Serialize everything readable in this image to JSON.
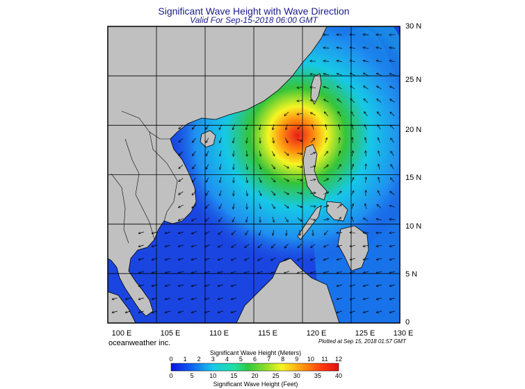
{
  "title": "Significant Wave Height with Wave Direction",
  "subtitle": "Valid For Sep-15-2018 06:00 GMT",
  "brand": "oceanweather inc.",
  "plotted": "Plotted at Sep 15, 2018 01:57 GMT",
  "map": {
    "lon_labels": [
      "100 E",
      "105 E",
      "110 E",
      "115 E",
      "120 E",
      "125 E",
      "130 E"
    ],
    "lat_labels": [
      "0",
      "5 N",
      "10 N",
      "15 N",
      "20 N",
      "25 N",
      "30 N"
    ],
    "storm_center": {
      "lon": 120.0,
      "lat": 19.5,
      "max_wave_height_m": 12
    },
    "land_color": "#c0c0c0",
    "colors": {
      "low": "#1a3fe0",
      "mid": "#17d6e6",
      "green": "#36c43a",
      "yellow": "#f5f523",
      "red": "#e61c1c"
    }
  },
  "colorbar": {
    "meters_title": "Significant Wave Height (Meters)",
    "feet_title": "Significant Wave Height (Feet)",
    "meters_ticks": [
      "0",
      "1",
      "2",
      "3",
      "4",
      "5",
      "6",
      "7",
      "8",
      "9",
      "10",
      "11",
      "12"
    ],
    "feet_ticks": [
      "0",
      "5",
      "10",
      "15",
      "20",
      "25",
      "30",
      "35",
      "40"
    ]
  }
}
